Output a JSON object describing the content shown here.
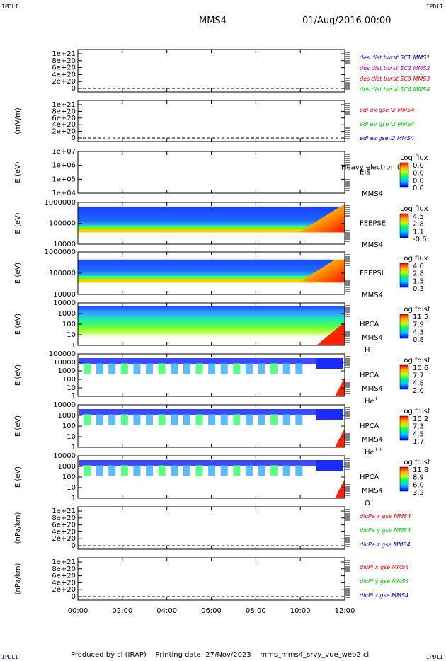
{
  "corners": {
    "tl": "IPDLI",
    "tr": "IPDLI",
    "bl": "IPDLI",
    "br": "IPDLI"
  },
  "header": {
    "spacecraft": "MMS4",
    "datetime": "01/Aug/2016 00:00"
  },
  "footer": {
    "text": "Produced by cl (IRAP)    Printing date: 27/Nov/2023    mms_mms4_srvy_vue_web2.cl"
  },
  "colors": {
    "red": "#ff0000",
    "magenta": "#cc00cc",
    "green": "#00cc00",
    "blue": "#0000cc"
  },
  "chart_data": {
    "type": "heatmap",
    "x_axis": {
      "ticks": [
        "00:00",
        "02:00",
        "04:00",
        "06:00",
        "08:00",
        "10:00",
        "12:00"
      ],
      "range_hours": [
        0,
        12
      ]
    },
    "panels": [
      {
        "id": "p1",
        "kind": "line",
        "ylabel": "",
        "yticks": [
          "1e+21",
          "8e+20",
          "6e+20",
          "4e+20",
          "2e+20",
          "0"
        ],
        "legend": [
          {
            "text": "des dist burst SC1 MMS1",
            "color": "blue"
          },
          {
            "text": "des dist burst SC2 MMS2",
            "color": "magenta"
          },
          {
            "text": "des dist burst SC3 MMS3",
            "color": "red"
          },
          {
            "text": "des dist burst SC4 MMS4",
            "color": "green"
          }
        ]
      },
      {
        "id": "p2",
        "kind": "line",
        "ylabel": "(mV/m)",
        "yticks": [
          "1e+21",
          "8e+20",
          "6e+20",
          "4e+20",
          "2e+20",
          "0"
        ],
        "legend": [
          {
            "text": "edi ex gse l2 MMS4",
            "color": "red"
          },
          {
            "text": "edi ey gse l2 MMS4",
            "color": "green"
          },
          {
            "text": "edi ez gse l2 MMS4",
            "color": "blue"
          }
        ]
      },
      {
        "id": "p3",
        "kind": "spec",
        "ylabel": "E (eV)",
        "yticks": [
          "1e+07",
          "1e+06",
          "1e+05",
          "1e+04"
        ],
        "labels": [
          "EIS",
          "MMS4"
        ],
        "overlay": "Heavy electron to",
        "cbar_title": "Log flux",
        "cbar_ticks": [
          "0.0",
          "0.0",
          "0.0",
          "0.0"
        ]
      },
      {
        "id": "p4",
        "kind": "spec",
        "ylabel": "E (eV)",
        "yticks": [
          "1000000",
          "100000",
          "10000"
        ],
        "labels": [
          "FEEPSE",
          "MMS4"
        ],
        "cbar_title": "Log flux",
        "cbar_ticks": [
          "4.5",
          "2.8",
          "1.1",
          "-0.6"
        ]
      },
      {
        "id": "p5",
        "kind": "spec",
        "ylabel": "E (eV)",
        "yticks": [
          "1000000",
          "100000",
          "10000"
        ],
        "labels": [
          "FEEPSI",
          "MMS4"
        ],
        "cbar_title": "Log flux",
        "cbar_ticks": [
          "4.0",
          "2.8",
          "1.5",
          "0.3"
        ]
      },
      {
        "id": "p6",
        "kind": "spec",
        "ylabel": "E (eV)",
        "yticks": [
          "10000",
          "1000",
          "100",
          "10",
          "1"
        ],
        "labels": [
          "HPCA",
          "MMS4"
        ],
        "species": "H",
        "species_sup": "+",
        "cbar_title": "Log fdist",
        "cbar_ticks": [
          "11.5",
          "7.9",
          "4.3",
          "0.8"
        ]
      },
      {
        "id": "p7",
        "kind": "spec",
        "ylabel": "E (eV)",
        "yticks": [
          "100000",
          "10000",
          "1000",
          "100",
          "10",
          "1"
        ],
        "labels": [
          "HPCA",
          "MMS4"
        ],
        "species": "He",
        "species_sup": "+",
        "cbar_title": "Log fdist",
        "cbar_ticks": [
          "10.6",
          "7.7",
          "4.8",
          "2.0"
        ]
      },
      {
        "id": "p8",
        "kind": "spec",
        "ylabel": "E (eV)",
        "yticks": [
          "10000",
          "1000",
          "100",
          "10",
          "1"
        ],
        "labels": [
          "HPCA",
          "MMS4"
        ],
        "species": "He",
        "species_sup": "++",
        "cbar_title": "Log fdist",
        "cbar_ticks": [
          "10.2",
          "7.3",
          "4.5",
          "1.7"
        ]
      },
      {
        "id": "p9",
        "kind": "spec",
        "ylabel": "E (eV)",
        "yticks": [
          "10000",
          "1000",
          "100",
          "10",
          "1"
        ],
        "labels": [
          "HPCA",
          "MMS4"
        ],
        "species": "O",
        "species_sup": "+",
        "cbar_title": "Log fdist",
        "cbar_ticks": [
          "11.8",
          "8.9",
          "6.0",
          "3.2"
        ]
      },
      {
        "id": "p10",
        "kind": "line",
        "ylabel": "(nPa/km)",
        "yticks": [
          "1e+21",
          "8e+20",
          "6e+20",
          "4e+20",
          "2e+20",
          "0"
        ],
        "legend": [
          {
            "text": "divPe x gse MMS4",
            "color": "red"
          },
          {
            "text": "divPe y gse MMS4",
            "color": "green"
          },
          {
            "text": "divPe z gse MMS4",
            "color": "blue"
          }
        ]
      },
      {
        "id": "p11",
        "kind": "line",
        "ylabel": "(nPa/km)",
        "yticks": [
          "1e+21",
          "8e+20",
          "6e+20",
          "4e+20",
          "2e+20",
          "0"
        ],
        "legend": [
          {
            "text": "divPi x gse MMS4",
            "color": "red"
          },
          {
            "text": "divPi y gse MMS4",
            "color": "green"
          },
          {
            "text": "divPi z gse MMS4",
            "color": "blue"
          }
        ]
      }
    ]
  }
}
